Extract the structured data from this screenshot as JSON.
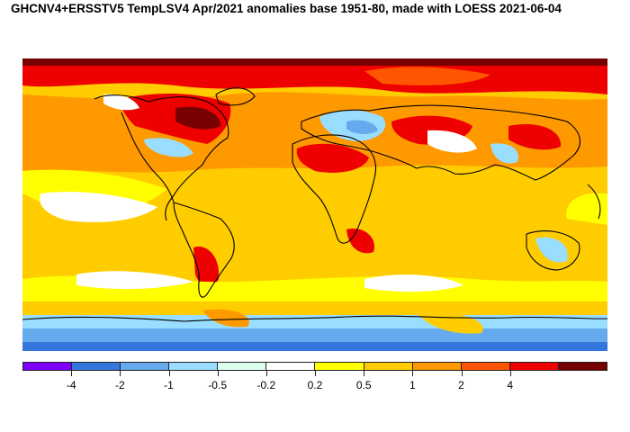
{
  "title": "GHCNV4+ERSSTV5 TempLSV4 Apr/2021 anomalies base 1951-80, made with LOESS 2021-06-04",
  "legend": {
    "colors": [
      "#7f00ff",
      "#3377dd",
      "#66aaee",
      "#99ddff",
      "#ddffee",
      "#ffffff",
      "#ffff00",
      "#ffcc00",
      "#ff9900",
      "#ff5500",
      "#ee0000",
      "#770000"
    ],
    "labels": [
      "-4",
      "-2",
      "-1",
      "-0.5",
      "-0.2",
      "0.2",
      "0.5",
      "1",
      "2",
      "4"
    ]
  },
  "map": {
    "projection": "equirectangular",
    "background": "#ffcc00"
  }
}
